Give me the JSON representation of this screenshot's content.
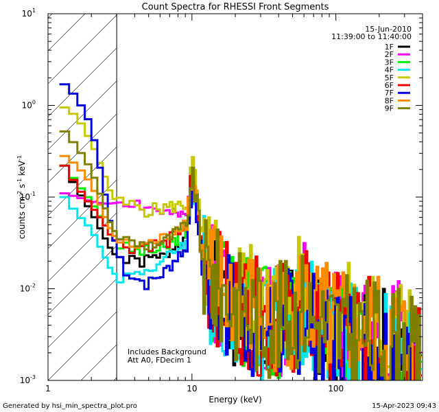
{
  "chart_data": {
    "type": "line",
    "title": "Count Spectra for RHESSI Front Segments",
    "xlabel": "Energy (keV)",
    "ylabel": "counts cm",
    "ylabel_sup1": "-2",
    "ylabel_mid": " s",
    "ylabel_sup2": "-1",
    "ylabel_end": " keV",
    "ylabel_sup3": "-1",
    "x_scale": "log",
    "y_scale": "log",
    "xlim": [
      1,
      400
    ],
    "ylim": [
      0.001,
      10
    ],
    "x_ticks": [
      {
        "v": 1,
        "label": "1"
      },
      {
        "v": 10,
        "label": "10"
      },
      {
        "v": 100,
        "label": "100"
      }
    ],
    "y_ticks": [
      {
        "v": 0.001,
        "base": "10",
        "exp": "-3"
      },
      {
        "v": 0.01,
        "base": "10",
        "exp": "-2"
      },
      {
        "v": 0.1,
        "base": "10",
        "exp": "-1"
      },
      {
        "v": 1,
        "base": "10",
        "exp": "0"
      },
      {
        "v": 10,
        "base": "10",
        "exp": "1"
      }
    ],
    "date": "15-Jun-2010",
    "time_range": "11:39:00 to 11:40:00",
    "excluded_region_keV": [
      1,
      3
    ],
    "annotations": [
      "Includes Background",
      "Att A0, FDecim 1"
    ],
    "series": [
      {
        "name": "1F",
        "color": "#000000",
        "offset": 0.85,
        "seed": 1,
        "low": [
          [
            1.3,
            0.22
          ],
          [
            1.6,
            0.12
          ],
          [
            2.0,
            0.07
          ],
          [
            2.4,
            0.04
          ],
          [
            2.8,
            0.025
          ],
          [
            3.3,
            0.02
          ],
          [
            4.0,
            0.019
          ],
          [
            5.0,
            0.02
          ],
          [
            6.5,
            0.022
          ],
          [
            8.5,
            0.035
          ]
        ]
      },
      {
        "name": "2F",
        "color": "#ff00ff",
        "offset": 1.05,
        "seed": 2,
        "low": [
          [
            1.3,
            0.11
          ],
          [
            1.6,
            0.1
          ],
          [
            2.0,
            0.09
          ],
          [
            2.4,
            0.085
          ],
          [
            2.8,
            0.085
          ],
          [
            3.3,
            0.09
          ],
          [
            4.0,
            0.085
          ],
          [
            5.0,
            0.075
          ],
          [
            6.5,
            0.065
          ],
          [
            8.5,
            0.06
          ]
        ]
      },
      {
        "name": "3F",
        "color": "#00ee00",
        "offset": 0.95,
        "seed": 3,
        "low": [
          [
            1.3,
            0.22
          ],
          [
            1.6,
            0.14
          ],
          [
            2.0,
            0.09
          ],
          [
            2.4,
            0.055
          ],
          [
            2.8,
            0.035
          ],
          [
            3.3,
            0.028
          ],
          [
            4.0,
            0.025
          ],
          [
            5.0,
            0.025
          ],
          [
            6.5,
            0.026
          ],
          [
            8.5,
            0.04
          ]
        ]
      },
      {
        "name": "4F",
        "color": "#00e5ee",
        "offset": 0.9,
        "seed": 4,
        "low": [
          [
            1.3,
            0.1
          ],
          [
            1.6,
            0.065
          ],
          [
            2.0,
            0.045
          ],
          [
            2.4,
            0.025
          ],
          [
            2.8,
            0.015
          ],
          [
            3.3,
            0.013
          ],
          [
            4.0,
            0.014
          ],
          [
            5.0,
            0.016
          ],
          [
            6.5,
            0.02
          ],
          [
            8.5,
            0.03
          ]
        ]
      },
      {
        "name": "5F",
        "color": "#c8c800",
        "offset": 1.4,
        "seed": 5,
        "low": [
          [
            1.3,
            0.95
          ],
          [
            1.6,
            0.75
          ],
          [
            2.0,
            0.4
          ],
          [
            2.4,
            0.2
          ],
          [
            2.8,
            0.1
          ],
          [
            3.3,
            0.08
          ],
          [
            4.0,
            0.08
          ],
          [
            5.0,
            0.07
          ],
          [
            6.5,
            0.075
          ],
          [
            8.5,
            0.08
          ]
        ]
      },
      {
        "name": "6F",
        "color": "#ee0000",
        "offset": 1.0,
        "seed": 6,
        "low": [
          [
            1.3,
            0.22
          ],
          [
            1.6,
            0.13
          ],
          [
            2.0,
            0.08
          ],
          [
            2.4,
            0.055
          ],
          [
            2.8,
            0.035
          ],
          [
            3.3,
            0.03
          ],
          [
            4.0,
            0.028
          ],
          [
            5.0,
            0.03
          ],
          [
            6.5,
            0.03
          ],
          [
            8.5,
            0.045
          ]
        ]
      },
      {
        "name": "7F",
        "color": "#0000dd",
        "offset": 0.8,
        "seed": 7,
        "low": [
          [
            1.3,
            1.7
          ],
          [
            1.6,
            1.2
          ],
          [
            2.0,
            0.6
          ],
          [
            2.4,
            0.15
          ],
          [
            2.8,
            0.04
          ],
          [
            3.3,
            0.017
          ],
          [
            4.0,
            0.013
          ],
          [
            5.0,
            0.011
          ],
          [
            6.5,
            0.015
          ],
          [
            8.5,
            0.025
          ]
        ]
      },
      {
        "name": "8F",
        "color": "#ff8c00",
        "offset": 1.1,
        "seed": 8,
        "low": [
          [
            1.3,
            0.28
          ],
          [
            1.6,
            0.22
          ],
          [
            2.0,
            0.14
          ],
          [
            2.4,
            0.07
          ],
          [
            2.8,
            0.04
          ],
          [
            3.3,
            0.03
          ],
          [
            4.0,
            0.028
          ],
          [
            5.0,
            0.03
          ],
          [
            6.5,
            0.035
          ],
          [
            8.5,
            0.05
          ]
        ]
      },
      {
        "name": "9F",
        "color": "#808000",
        "offset": 1.0,
        "seed": 9,
        "low": [
          [
            1.3,
            0.52
          ],
          [
            1.6,
            0.35
          ],
          [
            2.0,
            0.2
          ],
          [
            2.4,
            0.09
          ],
          [
            2.8,
            0.045
          ],
          [
            3.3,
            0.035
          ],
          [
            4.0,
            0.03
          ],
          [
            5.0,
            0.03
          ],
          [
            6.5,
            0.032
          ],
          [
            8.5,
            0.045
          ]
        ]
      }
    ],
    "common_high_energy_shape": [
      [
        9.3,
        0.06
      ],
      [
        10.0,
        0.17
      ],
      [
        10.8,
        0.09
      ],
      [
        11.5,
        0.03
      ],
      [
        12.5,
        0.012
      ],
      [
        15,
        0.009
      ],
      [
        20,
        0.006
      ],
      [
        25,
        0.005
      ],
      [
        30,
        0.004
      ],
      [
        40,
        0.004
      ],
      [
        50,
        0.0045
      ],
      [
        60,
        0.006
      ],
      [
        70,
        0.004
      ],
      [
        85,
        0.0035
      ],
      [
        100,
        0.003
      ],
      [
        150,
        0.0028
      ],
      [
        200,
        0.0025
      ],
      [
        280,
        0.0022
      ],
      [
        350,
        0.0015
      ],
      [
        390,
        0.0013
      ]
    ]
  },
  "footer": {
    "generated_by": "Generated by hsi_min_spectra_plot.pro",
    "timestamp": "15-Apr-2023 09:43"
  }
}
